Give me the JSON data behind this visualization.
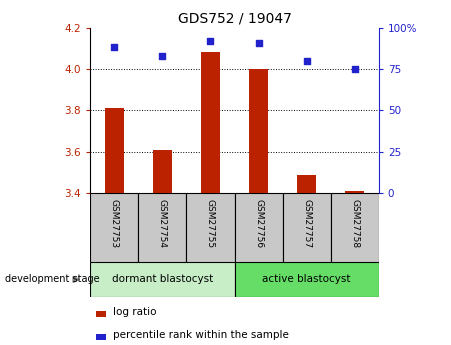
{
  "title": "GDS752 / 19047",
  "categories": [
    "GSM27753",
    "GSM27754",
    "GSM27755",
    "GSM27756",
    "GSM27757",
    "GSM27758"
  ],
  "log_ratio": [
    3.81,
    3.61,
    4.08,
    4.0,
    3.49,
    3.41
  ],
  "log_ratio_base": 3.4,
  "percentile_rank": [
    88,
    83,
    92,
    91,
    80,
    75
  ],
  "ylim_left": [
    3.4,
    4.2
  ],
  "ylim_right": [
    0,
    100
  ],
  "yticks_left": [
    3.4,
    3.6,
    3.8,
    4.0,
    4.2
  ],
  "yticks_right": [
    0,
    25,
    50,
    75,
    100
  ],
  "bar_color": "#bb2200",
  "scatter_color": "#2222cc",
  "group1_label": "dormant blastocyst",
  "group2_label": "active blastocyst",
  "group1_color": "#c8eec8",
  "group2_color": "#66dd66",
  "xticklabel_bg": "#c8c8c8",
  "stage_label": "development stage",
  "legend_bar_label": "log ratio",
  "legend_scatter_label": "percentile rank within the sample",
  "title_fontsize": 10,
  "tick_fontsize": 7.5
}
